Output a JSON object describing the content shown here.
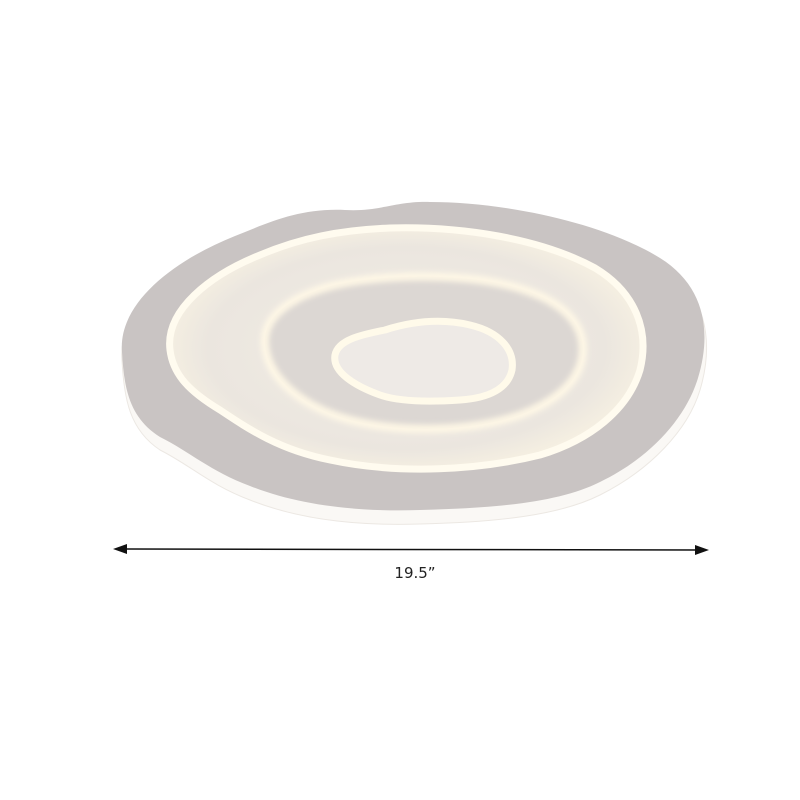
{
  "product": {
    "name": "ceiling-light",
    "dimension_label": "19.5”",
    "colors": {
      "plate": "#c9c4c3",
      "rim": "#fbfaf8",
      "glow": "#fff6e2",
      "arrow": "#111111"
    }
  }
}
